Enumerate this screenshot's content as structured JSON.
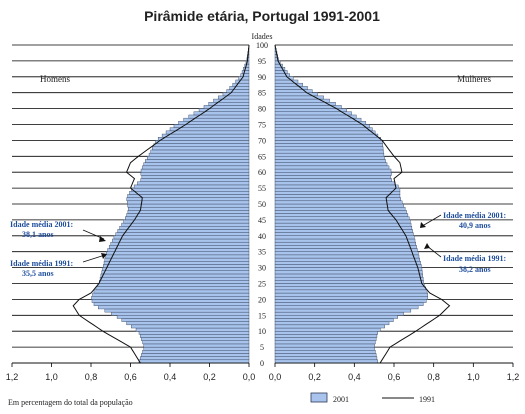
{
  "chart_data": {
    "type": "bar",
    "orientation": "horizontal-pyramid",
    "title": "Pirâmide etária, Portugal 1991-2001",
    "center_axis_label": "Idades",
    "xlabel": "Em percentagem do total da população",
    "left_label": "Homens",
    "right_label": "Mulheres",
    "xlim": [
      0,
      1.2
    ],
    "x_ticks": [
      "1,2",
      "1,0",
      "0,8",
      "0,6",
      "0,4",
      "0,2",
      "0,0"
    ],
    "x_ticks_right": [
      "0,0",
      "0,2",
      "0,4",
      "0,6",
      "0,8",
      "1,0",
      "1,2"
    ],
    "age_ticks": [
      "0",
      "5",
      "10",
      "15",
      "20",
      "25",
      "30",
      "35",
      "40",
      "45",
      "50",
      "55",
      "60",
      "65",
      "70",
      "75",
      "80",
      "85",
      "90",
      "95",
      "100"
    ],
    "legend": {
      "bar": "2001",
      "line": "1991",
      "position": "bottom-right"
    },
    "colors": {
      "bar_fill": "#a9c4ec",
      "bar_stroke": "#2c3a55",
      "line": "#111111",
      "annotation": "#1f4e9c"
    },
    "annotations": {
      "men_2001": [
        "Idade média 2001:",
        "38,1 anos"
      ],
      "men_1991": [
        "Idade média 1991:",
        "35,5 anos"
      ],
      "women_2001": [
        "Idade média 2001:",
        "40,9 anos"
      ],
      "women_1991": [
        "Idade média 1991:",
        "38,2 anos"
      ]
    },
    "series_anchor_points": {
      "ages": [
        0,
        5,
        10,
        15,
        18,
        20,
        22,
        25,
        30,
        35,
        40,
        45,
        48,
        52,
        55,
        58,
        60,
        63,
        65,
        70,
        75,
        80,
        85,
        90,
        95,
        100
      ],
      "men_2001": [
        0.56,
        0.53,
        0.56,
        0.68,
        0.78,
        0.8,
        0.79,
        0.76,
        0.74,
        0.72,
        0.68,
        0.63,
        0.61,
        0.62,
        0.59,
        0.54,
        0.55,
        0.53,
        0.51,
        0.47,
        0.37,
        0.24,
        0.12,
        0.045,
        0.012,
        0.0
      ],
      "women_2001": [
        0.52,
        0.5,
        0.52,
        0.63,
        0.74,
        0.77,
        0.77,
        0.75,
        0.74,
        0.72,
        0.7,
        0.68,
        0.66,
        0.63,
        0.63,
        0.58,
        0.59,
        0.56,
        0.55,
        0.54,
        0.47,
        0.35,
        0.2,
        0.08,
        0.02,
        0.0
      ],
      "men_1991": [
        0.55,
        0.6,
        0.74,
        0.86,
        0.89,
        0.86,
        0.8,
        0.76,
        0.72,
        0.68,
        0.64,
        0.58,
        0.55,
        0.54,
        0.6,
        0.58,
        0.62,
        0.6,
        0.56,
        0.45,
        0.32,
        0.2,
        0.09,
        0.03,
        0.008,
        0.0
      ],
      "women_1991": [
        0.53,
        0.58,
        0.71,
        0.83,
        0.88,
        0.84,
        0.78,
        0.74,
        0.72,
        0.69,
        0.66,
        0.61,
        0.57,
        0.56,
        0.61,
        0.6,
        0.64,
        0.63,
        0.6,
        0.54,
        0.44,
        0.31,
        0.16,
        0.06,
        0.015,
        0.0
      ]
    }
  }
}
